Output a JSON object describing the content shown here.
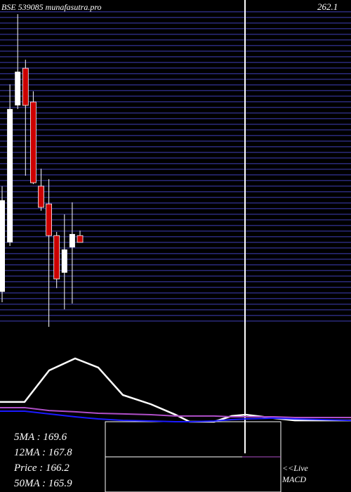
{
  "chart_data": [
    {
      "type": "candlestick",
      "title": "BSE 539085 munafasutra.pro",
      "price_label": "262.1",
      "ylim": [
        140,
        265
      ],
      "open": [
        153.4,
        172.3,
        224.7,
        238.9,
        226.0,
        193.8,
        187.0,
        174.9,
        160.7,
        170.4,
        174.9
      ],
      "high": [
        193.8,
        232.7,
        259.6,
        242.2,
        230.1,
        200.5,
        196.5,
        176.3,
        183.0,
        187.6,
        176.8
      ],
      "low": [
        149.4,
        170.9,
        223.3,
        197.8,
        194.6,
        184.4,
        140.0,
        154.8,
        146.7,
        148.9,
        172.3
      ],
      "close": [
        188.4,
        223.3,
        237.6,
        224.7,
        195.1,
        185.7,
        174.9,
        158.3,
        169.6,
        175.5,
        172.3
      ],
      "up_color": "#ffffff",
      "down_color": "#cc0000",
      "stats": [
        "5MA : 169.6",
        "12MA : 167.8",
        "Price   : 166.2",
        "50MA : 165.9"
      ],
      "live": "<<Live",
      "panel_label": "MACD"
    },
    {
      "type": "line",
      "ylim": [
        0,
        100
      ],
      "xlim": [
        0,
        500
      ],
      "x": [
        0,
        35,
        70,
        107,
        140,
        175,
        215,
        250,
        270,
        305,
        330,
        350,
        390,
        420,
        500
      ],
      "series": [
        {
          "color": "#ffffff",
          "values": [
            55.7,
            55.7,
            75.2,
            82.6,
            77.0,
            60.0,
            54.3,
            47.8,
            43.5,
            43.5,
            47.0,
            47.8,
            45.7,
            44.3,
            44.3
          ]
        },
        {
          "color": "#b04fc8",
          "values": [
            52.2,
            52.2,
            50.4,
            49.6,
            48.7,
            48.3,
            47.8,
            47.0,
            47.0,
            47.0,
            46.5,
            46.5,
            46.5,
            46.1,
            46.1
          ]
        },
        {
          "color": "#1a1aff",
          "values": [
            50.0,
            50.0,
            48.3,
            46.5,
            45.2,
            44.3,
            43.9,
            43.5,
            43.5,
            43.9,
            44.8,
            45.2,
            45.7,
            45.2,
            44.3
          ]
        }
      ]
    }
  ]
}
